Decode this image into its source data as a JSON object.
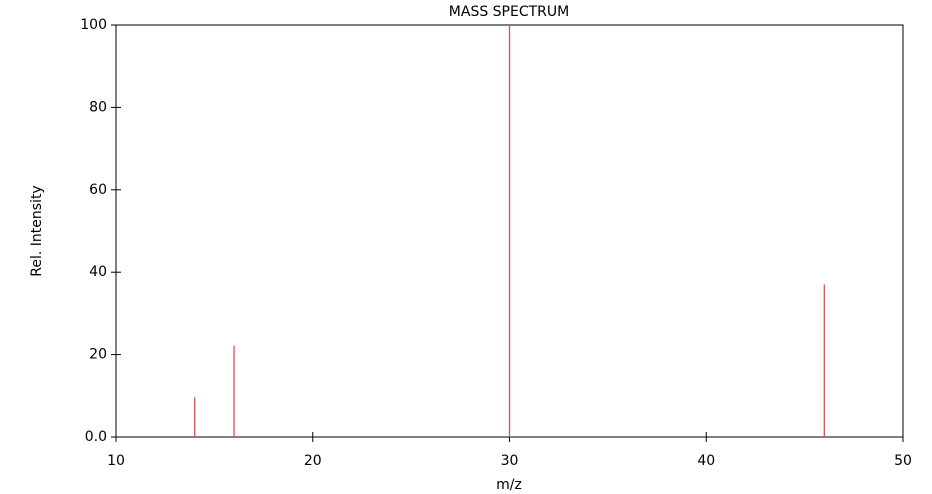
{
  "chart_data": {
    "type": "stem",
    "title": "MASS SPECTRUM",
    "x_label": "m/z",
    "y_label": "Rel. Intensity",
    "x": [
      14,
      16,
      30,
      46
    ],
    "values": [
      9.6,
      22.2,
      100,
      37
    ],
    "color": "#d9534f",
    "xlim": [
      10,
      50
    ],
    "xticks": [
      10,
      20,
      30,
      40,
      50
    ],
    "ylim": [
      0,
      100
    ],
    "yticks": [
      {
        "value": 0,
        "label": "0.0"
      },
      20,
      40,
      60,
      80,
      100
    ]
  }
}
